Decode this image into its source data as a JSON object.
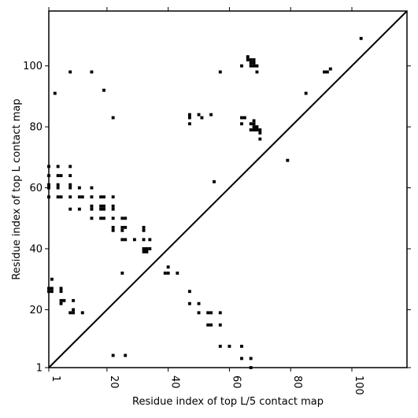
{
  "chart_data": {
    "type": "scatter",
    "title": "",
    "xlabel": "Residue index of top L/5 contact map",
    "ylabel": "Residue index of top L contact map",
    "xlim": [
      1,
      118
    ],
    "ylim": [
      1,
      118
    ],
    "x_ticks": [
      1,
      20,
      40,
      60,
      80,
      100
    ],
    "x_tick_labels": [
      "1",
      "20",
      "40",
      "60",
      "80",
      "100"
    ],
    "y_ticks": [
      1,
      20,
      40,
      60,
      80,
      100
    ],
    "y_tick_labels": [
      "1",
      "20",
      "40",
      "60",
      "80",
      "100"
    ],
    "x_tick_label_rotation": "vertical",
    "marker": "square",
    "marker_color": "#000000",
    "diagonal_line": true,
    "grid": false,
    "series": [
      {
        "points": [
          [
            1,
            67
          ],
          [
            1,
            64
          ],
          [
            1,
            61
          ],
          [
            1,
            60
          ],
          [
            1,
            57
          ],
          [
            4,
            67
          ],
          [
            4,
            64
          ],
          [
            4,
            61
          ],
          [
            4,
            60
          ],
          [
            4,
            57
          ],
          [
            5,
            64
          ],
          [
            5,
            57
          ],
          [
            8,
            67
          ],
          [
            8,
            64
          ],
          [
            8,
            61
          ],
          [
            8,
            60
          ],
          [
            8,
            57
          ],
          [
            8,
            53
          ],
          [
            11,
            60
          ],
          [
            11,
            57
          ],
          [
            11,
            53
          ],
          [
            12,
            57
          ],
          [
            15,
            60
          ],
          [
            15,
            57
          ],
          [
            15,
            54
          ],
          [
            15,
            53
          ],
          [
            15,
            50
          ],
          [
            18,
            57
          ],
          [
            18,
            54
          ],
          [
            18,
            53
          ],
          [
            18,
            50
          ],
          [
            19,
            57
          ],
          [
            19,
            54
          ],
          [
            19,
            53
          ],
          [
            19,
            50
          ],
          [
            22,
            57
          ],
          [
            22,
            54
          ],
          [
            22,
            53
          ],
          [
            22,
            50
          ],
          [
            22,
            47
          ],
          [
            22,
            46
          ],
          [
            25,
            50
          ],
          [
            25,
            47
          ],
          [
            25,
            46
          ],
          [
            25,
            43
          ],
          [
            26,
            50
          ],
          [
            26,
            47
          ],
          [
            26,
            43
          ],
          [
            29,
            43
          ],
          [
            32,
            47
          ],
          [
            32,
            46
          ],
          [
            32,
            43
          ],
          [
            32,
            40
          ],
          [
            32,
            39
          ],
          [
            33,
            40
          ],
          [
            33,
            39
          ],
          [
            34,
            43
          ],
          [
            34,
            40
          ],
          [
            39,
            32
          ],
          [
            40,
            34
          ],
          [
            40,
            32
          ],
          [
            43,
            32
          ],
          [
            25,
            32
          ],
          [
            1,
            27
          ],
          [
            1,
            26
          ],
          [
            2,
            30
          ],
          [
            2,
            27
          ],
          [
            2,
            26
          ],
          [
            5,
            27
          ],
          [
            5,
            26
          ],
          [
            5,
            23
          ],
          [
            5,
            22
          ],
          [
            6,
            23
          ],
          [
            9,
            23
          ],
          [
            8,
            19
          ],
          [
            9,
            20
          ],
          [
            9,
            19
          ],
          [
            12,
            19
          ],
          [
            47,
            26
          ],
          [
            47,
            22
          ],
          [
            50,
            22
          ],
          [
            50,
            19
          ],
          [
            53,
            19
          ],
          [
            54,
            19
          ],
          [
            53,
            15
          ],
          [
            54,
            15
          ],
          [
            57,
            19
          ],
          [
            57,
            15
          ],
          [
            57,
            8
          ],
          [
            60,
            8
          ],
          [
            64,
            8
          ],
          [
            64,
            4
          ],
          [
            67,
            4
          ],
          [
            67,
            1
          ],
          [
            22,
            5
          ],
          [
            26,
            5
          ],
          [
            47,
            84
          ],
          [
            47,
            83
          ],
          [
            47,
            81
          ],
          [
            50,
            84
          ],
          [
            51,
            83
          ],
          [
            54,
            84
          ],
          [
            55,
            62
          ],
          [
            57,
            98
          ],
          [
            64,
            100
          ],
          [
            64,
            83
          ],
          [
            64,
            81
          ],
          [
            65,
            83
          ],
          [
            66,
            103
          ],
          [
            66,
            102
          ],
          [
            67,
            102
          ],
          [
            67,
            101
          ],
          [
            67,
            100
          ],
          [
            68,
            102
          ],
          [
            68,
            101
          ],
          [
            68,
            100
          ],
          [
            69,
            100
          ],
          [
            69,
            98
          ],
          [
            67,
            81
          ],
          [
            67,
            79
          ],
          [
            68,
            82
          ],
          [
            68,
            81
          ],
          [
            68,
            80
          ],
          [
            68,
            79
          ],
          [
            69,
            80
          ],
          [
            69,
            79
          ],
          [
            70,
            79
          ],
          [
            70,
            78
          ],
          [
            70,
            76
          ],
          [
            79,
            69
          ],
          [
            85,
            91
          ],
          [
            91,
            98
          ],
          [
            92,
            98
          ],
          [
            93,
            99
          ],
          [
            103,
            109
          ],
          [
            3,
            91
          ],
          [
            8,
            98
          ],
          [
            15,
            98
          ],
          [
            19,
            92
          ],
          [
            22,
            83
          ]
        ]
      }
    ]
  }
}
